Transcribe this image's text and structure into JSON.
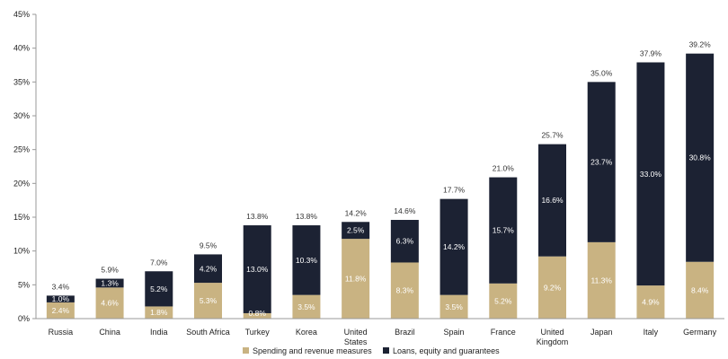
{
  "chart_data": {
    "type": "bar",
    "stacked": true,
    "categories": [
      "Russia",
      "China",
      "India",
      "South Africa",
      "Turkey",
      "Korea",
      "United States",
      "Brazil",
      "Spain",
      "France",
      "United Kingdom",
      "Japan",
      "Italy",
      "Germany"
    ],
    "series": [
      {
        "name": "Spending and revenue measures",
        "color": "#c9b382",
        "values": [
          2.4,
          4.6,
          1.8,
          5.3,
          0.8,
          3.5,
          11.8,
          8.3,
          3.5,
          5.2,
          9.2,
          11.3,
          4.9,
          8.4
        ],
        "labels": [
          "2.4%",
          "4.6%",
          "1.8%",
          "5.3%",
          "0.8%",
          "3.5%",
          "11.8%",
          "8.3%",
          "3.5%",
          "5.2%",
          "9.2%",
          "11.3%",
          "4.9%",
          "8.4%"
        ]
      },
      {
        "name": "Loans, equity and guarantees",
        "color": "#1c2233",
        "values": [
          1.0,
          1.3,
          5.2,
          4.2,
          13.0,
          10.3,
          2.5,
          6.3,
          14.2,
          15.7,
          16.6,
          23.7,
          33.0,
          30.8
        ],
        "labels": [
          "1.0%",
          "1.3%",
          "5.2%",
          "4.2%",
          "13.0%",
          "10.3%",
          "2.5%",
          "6.3%",
          "14.2%",
          "15.7%",
          "16.6%",
          "23.7%",
          "33.0%",
          "30.8%"
        ]
      }
    ],
    "totals": [
      3.4,
      5.9,
      7.0,
      9.5,
      13.8,
      13.8,
      14.2,
      14.6,
      17.7,
      21.0,
      25.7,
      35.0,
      37.9,
      39.2
    ],
    "total_labels": [
      "3.4%",
      "5.9%",
      "7.0%",
      "9.5%",
      "13.8%",
      "13.8%",
      "14.2%",
      "14.6%",
      "17.7%",
      "21.0%",
      "25.7%",
      "35.0%",
      "37.9%",
      "39.2%"
    ],
    "ylim": [
      0,
      45
    ],
    "yticks": [
      0,
      5,
      10,
      15,
      20,
      25,
      30,
      35,
      40,
      45
    ],
    "ytick_labels": [
      "0%",
      "5%",
      "10%",
      "15%",
      "20%",
      "25%",
      "30%",
      "35%",
      "40%",
      "45%"
    ],
    "grid": false,
    "legend_position": "bottom-center",
    "title": "",
    "xlabel": "",
    "ylabel": ""
  }
}
